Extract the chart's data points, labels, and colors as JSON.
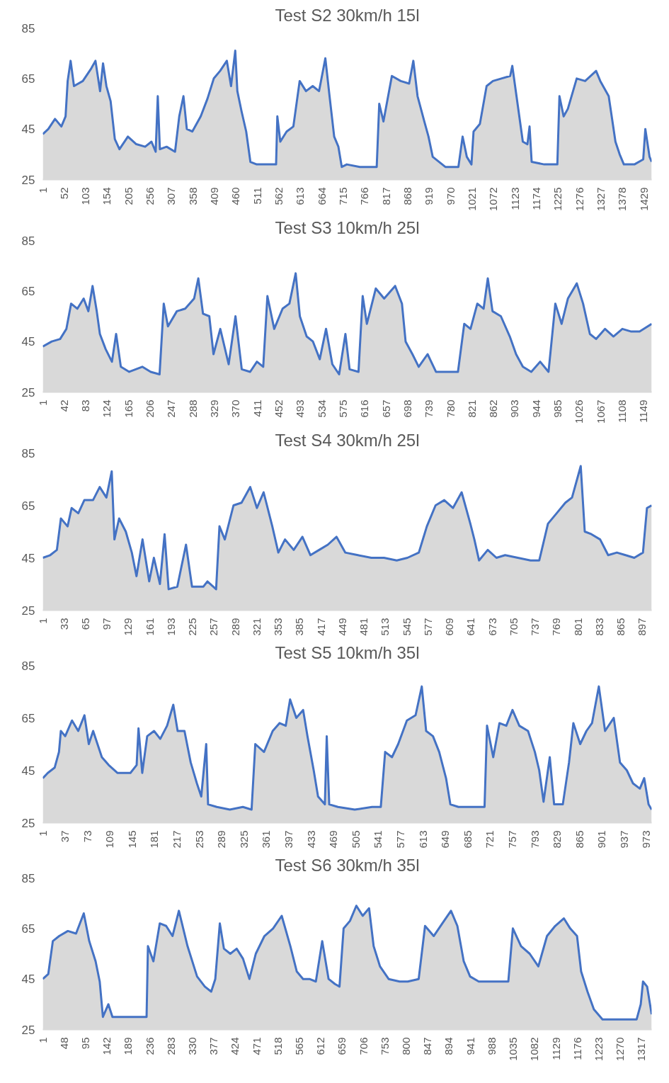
{
  "chart_data": [
    {
      "type": "area",
      "title": "Test S2 30km/h 15l",
      "xlim": [
        1,
        1447
      ],
      "ylim": [
        25,
        85
      ],
      "yticks": [
        25,
        45,
        65,
        85
      ],
      "xticks": [
        1,
        52,
        103,
        154,
        205,
        256,
        307,
        358,
        409,
        460,
        511,
        562,
        613,
        664,
        715,
        766,
        817,
        868,
        919,
        970,
        1021,
        1072,
        1123,
        1174,
        1225,
        1276,
        1327,
        1378,
        1429
      ],
      "series": [
        {
          "color": "#4472c4",
          "x": [
            1,
            14,
            30,
            45,
            55,
            60,
            67,
            75,
            96,
            116,
            126,
            137,
            144,
            152,
            162,
            172,
            183,
            203,
            223,
            244,
            259,
            269,
            274,
            279,
            295,
            315,
            325,
            335,
            343,
            356,
            376,
            392,
            407,
            422,
            438,
            448,
            458,
            463,
            473,
            484,
            494,
            509,
            529,
            555,
            558,
            565,
            580,
            596,
            611,
            626,
            642,
            657,
            672,
            682,
            693,
            703,
            711,
            723,
            754,
            794,
            800,
            810,
            830,
            851,
            871,
            881,
            891,
            907,
            917,
            927,
            957,
            988,
            998,
            1008,
            1019,
            1024,
            1039,
            1055,
            1070,
            1090,
            1111,
            1116,
            1126,
            1141,
            1152,
            1157,
            1162,
            1192,
            1223,
            1228,
            1238,
            1248,
            1269,
            1289,
            1315,
            1325,
            1345,
            1361,
            1371,
            1381,
            1406,
            1427,
            1432,
            1442,
            1447
          ],
          "values": [
            43,
            45,
            49,
            46,
            50,
            64,
            72,
            62,
            64,
            69,
            72,
            60,
            71,
            62,
            56,
            41,
            37,
            42,
            39,
            38,
            40,
            36,
            58,
            37,
            38,
            36,
            50,
            58,
            45,
            44,
            50,
            57,
            65,
            68,
            72,
            62,
            76,
            60,
            52,
            44,
            32,
            31,
            31,
            31,
            50,
            40,
            44,
            46,
            64,
            60,
            62,
            60,
            73,
            58,
            42,
            38,
            30,
            31,
            30,
            30,
            55,
            48,
            66,
            64,
            63,
            72,
            58,
            48,
            42,
            34,
            30,
            30,
            42,
            34,
            31,
            44,
            47,
            62,
            64,
            65,
            66,
            70,
            58,
            40,
            39,
            46,
            32,
            31,
            31,
            58,
            50,
            53,
            65,
            64,
            68,
            64,
            58,
            40,
            35,
            31,
            31,
            33,
            45,
            34,
            32
          ]
        }
      ]
    },
    {
      "type": "area",
      "title": "Test S3 10km/h 25l",
      "xlim": [
        1,
        1164
      ],
      "ylim": [
        25,
        85
      ],
      "yticks": [
        25,
        45,
        65,
        85
      ],
      "xticks": [
        1,
        42,
        83,
        124,
        165,
        206,
        247,
        288,
        329,
        370,
        411,
        452,
        493,
        534,
        575,
        616,
        657,
        698,
        739,
        780,
        821,
        862,
        903,
        944,
        985,
        1026,
        1067,
        1108,
        1149
      ],
      "series": [
        {
          "color": "#4472c4",
          "x": [
            1,
            18,
            34,
            46,
            55,
            67,
            79,
            88,
            96,
            104,
            110,
            121,
            133,
            141,
            150,
            166,
            191,
            207,
            224,
            232,
            240,
            257,
            273,
            290,
            298,
            307,
            319,
            327,
            340,
            356,
            369,
            381,
            397,
            410,
            422,
            430,
            443,
            459,
            472,
            484,
            492,
            505,
            517,
            530,
            542,
            554,
            567,
            579,
            587,
            604,
            612,
            620,
            637,
            653,
            674,
            687,
            694,
            707,
            719,
            736,
            752,
            777,
            794,
            806,
            818,
            831,
            843,
            851,
            860,
            876,
            893,
            905,
            918,
            934,
            951,
            967,
            980,
            992,
            1004,
            1021,
            1033,
            1046,
            1058,
            1075,
            1091,
            1108,
            1124,
            1141,
            1164
          ],
          "values": [
            43,
            45,
            46,
            50,
            60,
            58,
            62,
            57,
            67,
            57,
            48,
            42,
            37,
            48,
            35,
            33,
            35,
            33,
            32,
            60,
            51,
            57,
            58,
            62,
            70,
            56,
            55,
            40,
            50,
            36,
            55,
            34,
            33,
            37,
            35,
            63,
            50,
            58,
            60,
            72,
            55,
            47,
            45,
            38,
            50,
            36,
            32,
            48,
            34,
            33,
            63,
            52,
            66,
            62,
            67,
            60,
            45,
            40,
            35,
            40,
            33,
            33,
            33,
            52,
            50,
            60,
            58,
            70,
            57,
            55,
            47,
            40,
            35,
            33,
            37,
            33,
            60,
            52,
            62,
            68,
            60,
            48,
            46,
            50,
            47,
            50,
            49,
            49,
            52
          ]
        }
      ]
    },
    {
      "type": "area",
      "title": "Test S4 30km/h 25l",
      "xlim": [
        1,
        911
      ],
      "ylim": [
        25,
        85
      ],
      "yticks": [
        25,
        45,
        65,
        85
      ],
      "xticks": [
        1,
        33,
        65,
        97,
        129,
        161,
        193,
        225,
        257,
        289,
        321,
        353,
        385,
        417,
        449,
        481,
        513,
        545,
        577,
        609,
        641,
        673,
        705,
        737,
        769,
        801,
        833,
        865,
        897
      ],
      "series": [
        {
          "color": "#4472c4",
          "x": [
            1,
            12,
            22,
            28,
            38,
            44,
            54,
            63,
            76,
            86,
            96,
            104,
            108,
            115,
            125,
            134,
            141,
            150,
            160,
            167,
            176,
            183,
            189,
            202,
            215,
            224,
            241,
            247,
            260,
            265,
            273,
            286,
            298,
            311,
            321,
            331,
            344,
            353,
            363,
            376,
            389,
            401,
            414,
            427,
            440,
            453,
            472,
            492,
            511,
            530,
            546,
            563,
            575,
            588,
            601,
            614,
            627,
            640,
            646,
            653,
            666,
            679,
            692,
            711,
            730,
            743,
            756,
            769,
            782,
            792,
            805,
            811,
            821,
            834,
            846,
            859,
            872,
            885,
            898,
            904,
            911
          ],
          "values": [
            45,
            46,
            48,
            60,
            57,
            64,
            62,
            67,
            67,
            72,
            68,
            78,
            52,
            60,
            55,
            47,
            38,
            52,
            36,
            45,
            35,
            54,
            33,
            34,
            50,
            34,
            34,
            36,
            33,
            57,
            52,
            65,
            66,
            72,
            64,
            70,
            57,
            47,
            52,
            48,
            53,
            46,
            48,
            50,
            53,
            47,
            46,
            45,
            45,
            44,
            45,
            47,
            57,
            65,
            67,
            64,
            70,
            58,
            52,
            44,
            48,
            45,
            46,
            45,
            44,
            44,
            58,
            62,
            66,
            68,
            80,
            55,
            54,
            52,
            46,
            47,
            46,
            45,
            47,
            64,
            65
          ]
        }
      ]
    },
    {
      "type": "area",
      "title": "Test S5 10km/h 35l",
      "xlim": [
        1,
        981
      ],
      "ylim": [
        25,
        85
      ],
      "yticks": [
        25,
        45,
        65,
        85
      ],
      "xticks": [
        1,
        37,
        73,
        109,
        145,
        181,
        217,
        253,
        289,
        325,
        361,
        397,
        433,
        469,
        505,
        541,
        577,
        613,
        649,
        685,
        721,
        757,
        793,
        829,
        865,
        901,
        937,
        973
      ],
      "series": [
        {
          "color": "#4472c4",
          "x": [
            1,
            9,
            20,
            27,
            30,
            37,
            48,
            58,
            68,
            75,
            82,
            89,
            96,
            107,
            121,
            142,
            152,
            155,
            161,
            169,
            180,
            190,
            201,
            211,
            218,
            229,
            239,
            249,
            256,
            264,
            267,
            281,
            302,
            323,
            337,
            343,
            357,
            371,
            382,
            392,
            399,
            409,
            420,
            427,
            437,
            444,
            455,
            458,
            462,
            476,
            503,
            531,
            545,
            552,
            563,
            573,
            587,
            601,
            611,
            618,
            629,
            639,
            650,
            657,
            670,
            691,
            712,
            716,
            726,
            736,
            747,
            757,
            768,
            782,
            793,
            800,
            807,
            817,
            824,
            838,
            848,
            855,
            866,
            876,
            885,
            896,
            906,
            920,
            930,
            941,
            951,
            962,
            969,
            976,
            981
          ],
          "values": [
            42,
            44,
            46,
            52,
            60,
            58,
            64,
            60,
            66,
            55,
            60,
            55,
            50,
            47,
            44,
            44,
            47,
            61,
            44,
            58,
            60,
            57,
            62,
            70,
            60,
            60,
            48,
            40,
            35,
            55,
            32,
            31,
            30,
            31,
            30,
            55,
            52,
            60,
            63,
            62,
            72,
            65,
            68,
            58,
            45,
            35,
            32,
            58,
            32,
            31,
            30,
            31,
            31,
            52,
            50,
            55,
            64,
            66,
            77,
            60,
            58,
            52,
            42,
            32,
            31,
            31,
            31,
            62,
            50,
            63,
            62,
            68,
            62,
            60,
            52,
            45,
            33,
            50,
            32,
            32,
            48,
            63,
            55,
            60,
            63,
            77,
            60,
            65,
            48,
            45,
            40,
            38,
            42,
            32,
            30
          ]
        }
      ]
    },
    {
      "type": "area",
      "title": "Test S6 30km/h 35l",
      "xlim": [
        1,
        1339
      ],
      "ylim": [
        25,
        85
      ],
      "yticks": [
        25,
        45,
        65,
        85
      ],
      "xticks": [
        1,
        48,
        95,
        142,
        189,
        236,
        283,
        330,
        377,
        424,
        471,
        518,
        565,
        612,
        659,
        706,
        753,
        800,
        847,
        894,
        941,
        988,
        1035,
        1082,
        1129,
        1176,
        1223,
        1270,
        1317
      ],
      "series": [
        {
          "color": "#4472c4",
          "x": [
            1,
            13,
            23,
            37,
            56,
            74,
            91,
            103,
            117,
            126,
            133,
            145,
            154,
            187,
            220,
            229,
            232,
            244,
            258,
            272,
            286,
            300,
            319,
            340,
            357,
            371,
            380,
            390,
            399,
            413,
            427,
            441,
            455,
            469,
            488,
            507,
            526,
            545,
            559,
            573,
            587,
            601,
            615,
            629,
            643,
            653,
            662,
            676,
            690,
            704,
            718,
            728,
            742,
            761,
            785,
            803,
            827,
            841,
            860,
            879,
            898,
            912,
            926,
            940,
            959,
            982,
            1006,
            1024,
            1034,
            1052,
            1071,
            1090,
            1109,
            1127,
            1146,
            1160,
            1175,
            1184,
            1198,
            1212,
            1231,
            1269,
            1306,
            1315,
            1320,
            1329,
            1339
          ],
          "values": [
            45,
            47,
            60,
            62,
            64,
            63,
            71,
            60,
            52,
            44,
            30,
            35,
            30,
            30,
            30,
            30,
            58,
            52,
            67,
            66,
            62,
            72,
            58,
            46,
            42,
            40,
            45,
            67,
            57,
            55,
            57,
            53,
            45,
            55,
            62,
            65,
            70,
            58,
            48,
            45,
            45,
            44,
            60,
            45,
            43,
            42,
            65,
            68,
            74,
            70,
            73,
            58,
            50,
            45,
            44,
            44,
            45,
            66,
            62,
            67,
            72,
            66,
            52,
            46,
            44,
            44,
            44,
            44,
            65,
            58,
            55,
            50,
            62,
            66,
            69,
            65,
            62,
            48,
            40,
            33,
            29,
            29,
            29,
            35,
            44,
            42,
            31
          ]
        }
      ]
    }
  ]
}
